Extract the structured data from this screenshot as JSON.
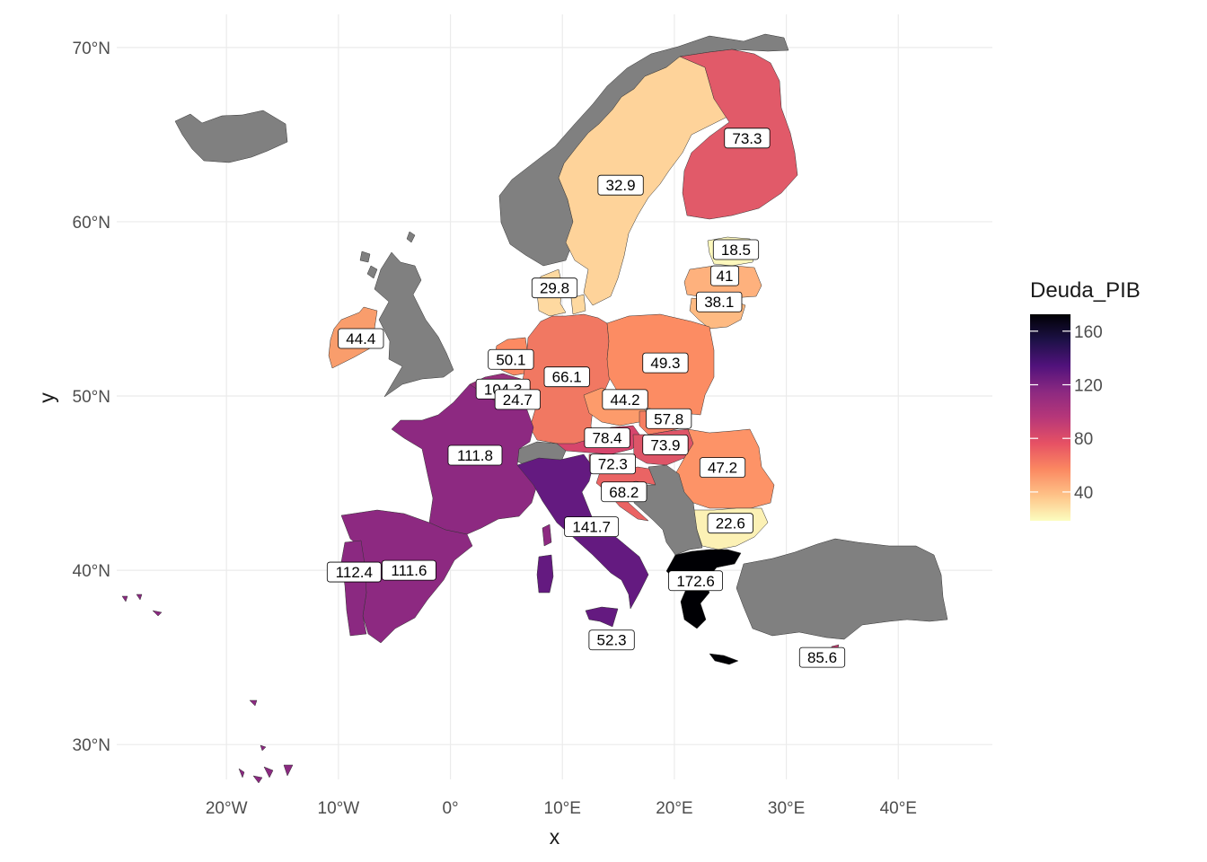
{
  "x_axis": {
    "title": "x",
    "ticks": [
      {
        "lon": -20,
        "label": "20°W"
      },
      {
        "lon": -10,
        "label": "10°W"
      },
      {
        "lon": 0,
        "label": "0°"
      },
      {
        "lon": 10,
        "label": "10°E"
      },
      {
        "lon": 20,
        "label": "20°E"
      },
      {
        "lon": 30,
        "label": "30°E"
      },
      {
        "lon": 40,
        "label": "40°E"
      }
    ]
  },
  "y_axis": {
    "title": "y",
    "ticks": [
      {
        "lat": 30,
        "label": "30°N"
      },
      {
        "lat": 40,
        "label": "40°N"
      },
      {
        "lat": 50,
        "label": "50°N"
      },
      {
        "lat": 60,
        "label": "60°N"
      },
      {
        "lat": 70,
        "label": "70°N"
      }
    ]
  },
  "extent": {
    "lon_min": -29.8,
    "lon_max": 48.4,
    "lat_min": 28.0,
    "lat_max": 71.9
  },
  "legend": {
    "title": "Deuda_PIB",
    "min": 18.5,
    "max": 172.6,
    "ticks": [
      {
        "value": 40,
        "label": "40"
      },
      {
        "value": 80,
        "label": "80"
      },
      {
        "value": 120,
        "label": "120"
      },
      {
        "value": 160,
        "label": "160"
      }
    ],
    "palette": [
      "#FCFDBF",
      "#FEC287",
      "#FB8861",
      "#E65164",
      "#B73779",
      "#8C2981",
      "#51127C",
      "#1D1147",
      "#000004"
    ]
  },
  "no_data_color": "#808080",
  "chart_data": {
    "type": "map",
    "fill_variable": "Deuda_PIB",
    "regions": [
      {
        "label": "73.3",
        "value": 73.3,
        "lon": 26.5,
        "lat": 64.8
      },
      {
        "label": "32.9",
        "value": 32.9,
        "lon": 15.2,
        "lat": 62.1
      },
      {
        "label": "18.5",
        "value": 18.5,
        "lon": 25.5,
        "lat": 58.4
      },
      {
        "label": "41",
        "value": 41,
        "lon": 24.5,
        "lat": 56.9
      },
      {
        "label": "38.1",
        "value": 38.1,
        "lon": 24.0,
        "lat": 55.4
      },
      {
        "label": "29.8",
        "value": 29.8,
        "lon": 9.3,
        "lat": 56.2
      },
      {
        "label": "44.4",
        "value": 44.4,
        "lon": -8.0,
        "lat": 53.3
      },
      {
        "label": "50.1",
        "value": 50.1,
        "lon": 5.4,
        "lat": 52.1
      },
      {
        "label": "66.1",
        "value": 66.1,
        "lon": 10.4,
        "lat": 51.1
      },
      {
        "label": "49.3",
        "value": 49.3,
        "lon": 19.2,
        "lat": 51.9
      },
      {
        "label": "104.3",
        "value": 104.3,
        "lon": 4.7,
        "lat": 50.4
      },
      {
        "label": "24.7",
        "value": 24.7,
        "lon": 6.0,
        "lat": 49.8
      },
      {
        "label": "44.2",
        "value": 44.2,
        "lon": 15.6,
        "lat": 49.8
      },
      {
        "label": "57.8",
        "value": 57.8,
        "lon": 19.5,
        "lat": 48.7
      },
      {
        "label": "78.4",
        "value": 78.4,
        "lon": 14.0,
        "lat": 47.6
      },
      {
        "label": "73.9",
        "value": 73.9,
        "lon": 19.2,
        "lat": 47.2
      },
      {
        "label": "72.3",
        "value": 72.3,
        "lon": 14.5,
        "lat": 46.1
      },
      {
        "label": "47.2",
        "value": 47.2,
        "lon": 24.3,
        "lat": 45.9
      },
      {
        "label": "111.8",
        "value": 111.8,
        "lon": 2.2,
        "lat": 46.6
      },
      {
        "label": "68.2",
        "value": 68.2,
        "lon": 15.5,
        "lat": 44.5
      },
      {
        "label": "22.6",
        "value": 22.6,
        "lon": 25.0,
        "lat": 42.7
      },
      {
        "label": "141.7",
        "value": 141.7,
        "lon": 12.6,
        "lat": 42.5
      },
      {
        "label": "112.4",
        "value": 112.4,
        "lon": -8.6,
        "lat": 39.9
      },
      {
        "label": "111.6",
        "value": 111.6,
        "lon": -3.7,
        "lat": 40.0
      },
      {
        "label": "172.6",
        "value": 172.6,
        "lon": 21.9,
        "lat": 39.4
      },
      {
        "label": "52.3",
        "value": 52.3,
        "lon": 14.4,
        "lat": 36.0
      },
      {
        "label": "85.6",
        "value": 85.6,
        "lon": 33.2,
        "lat": 35.0
      }
    ]
  }
}
